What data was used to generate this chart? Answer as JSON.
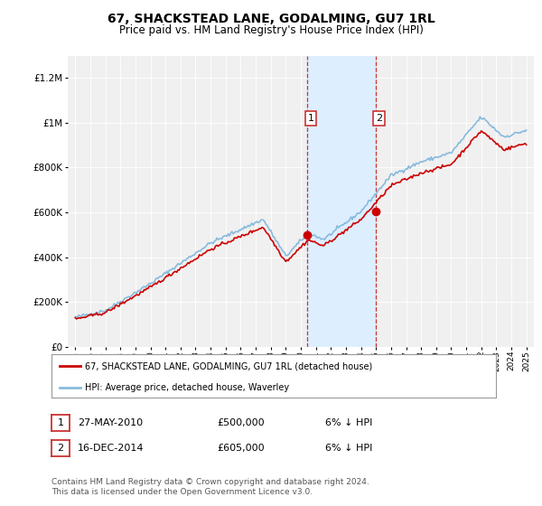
{
  "title": "67, SHACKSTEAD LANE, GODALMING, GU7 1RL",
  "subtitle": "Price paid vs. HM Land Registry's House Price Index (HPI)",
  "legend_label_red": "67, SHACKSTEAD LANE, GODALMING, GU7 1RL (detached house)",
  "legend_label_blue": "HPI: Average price, detached house, Waverley",
  "transaction1_date": "27-MAY-2010",
  "transaction1_price": "£500,000",
  "transaction1_hpi": "6% ↓ HPI",
  "transaction2_date": "16-DEC-2014",
  "transaction2_price": "£605,000",
  "transaction2_hpi": "6% ↓ HPI",
  "footer": "Contains HM Land Registry data © Crown copyright and database right 2024.\nThis data is licensed under the Open Government Licence v3.0.",
  "transaction1_x": 2010.42,
  "transaction1_y": 500000,
  "transaction2_x": 2014.96,
  "transaction2_y": 605000,
  "shade_x1": 2010.42,
  "shade_x2": 2015.0,
  "ylim": [
    0,
    1300000
  ],
  "xlim": [
    1994.5,
    2025.5
  ],
  "background_color": "#ffffff",
  "plot_bg_color": "#f0f0f0",
  "shade_color": "#ddeeff",
  "red_color": "#cc0000",
  "blue_color": "#88bbdd",
  "grid_color": "#ffffff"
}
